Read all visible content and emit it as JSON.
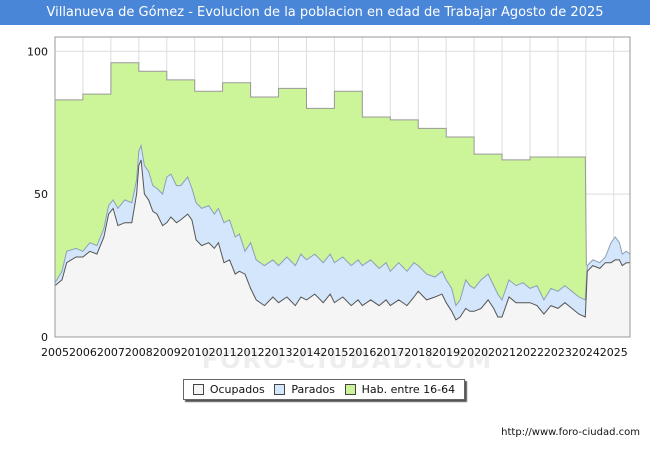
{
  "chart_data": {
    "type": "area",
    "title": "Villanueva de Gómez - Evolucion de la poblacion en edad de Trabajar Agosto de 2025",
    "xlabel": "",
    "ylabel": "",
    "x_ticks": [
      "2005",
      "2006",
      "2007",
      "2008",
      "2009",
      "2010",
      "2011",
      "2012",
      "2013",
      "2014",
      "2015",
      "2016",
      "2017",
      "2018",
      "2019",
      "2020",
      "2021",
      "2022",
      "2023",
      "2024",
      "2025"
    ],
    "y_ticks": [
      "0",
      "50",
      "100"
    ],
    "xlim": [
      2005,
      2025.58
    ],
    "ylim": [
      0,
      105
    ],
    "grid": true,
    "watermark": "FORO-CIUDAD.COM",
    "legend_position": "bottom",
    "series": [
      {
        "name": "Hab. entre 16-64",
        "color": "#ccf59a",
        "values": [
          [
            2005,
            83
          ],
          [
            2006,
            83
          ],
          [
            2006,
            85
          ],
          [
            2007,
            85
          ],
          [
            2007,
            96
          ],
          [
            2008,
            96
          ],
          [
            2008,
            93
          ],
          [
            2009,
            93
          ],
          [
            2009,
            90
          ],
          [
            2010,
            90
          ],
          [
            2010,
            86
          ],
          [
            2011,
            86
          ],
          [
            2011,
            89
          ],
          [
            2012,
            89
          ],
          [
            2012,
            84
          ],
          [
            2013,
            84
          ],
          [
            2013,
            87
          ],
          [
            2014,
            87
          ],
          [
            2014,
            80
          ],
          [
            2015,
            80
          ],
          [
            2015,
            86
          ],
          [
            2016,
            86
          ],
          [
            2016,
            77
          ],
          [
            2017,
            77
          ],
          [
            2017,
            76
          ],
          [
            2018,
            76
          ],
          [
            2018,
            73
          ],
          [
            2019,
            73
          ],
          [
            2019,
            70
          ],
          [
            2020,
            70
          ],
          [
            2020,
            64
          ],
          [
            2021,
            64
          ],
          [
            2021,
            62
          ],
          [
            2022,
            62
          ],
          [
            2022,
            63
          ],
          [
            2023.98,
            63
          ],
          [
            2024.02,
            25
          ]
        ]
      },
      {
        "name": "Parados",
        "color": "#d3e6fb",
        "values": [
          [
            2005,
            19
          ],
          [
            2005.25,
            23
          ],
          [
            2005.42,
            30
          ],
          [
            2005.75,
            31
          ],
          [
            2006,
            30
          ],
          [
            2006.25,
            33
          ],
          [
            2006.5,
            32
          ],
          [
            2006.75,
            38
          ],
          [
            2006.92,
            46
          ],
          [
            2007.08,
            48
          ],
          [
            2007.25,
            45
          ],
          [
            2007.5,
            48
          ],
          [
            2007.75,
            47
          ],
          [
            2007.92,
            55
          ],
          [
            2008,
            65
          ],
          [
            2008.08,
            67
          ],
          [
            2008.2,
            60
          ],
          [
            2008.35,
            58
          ],
          [
            2008.5,
            53
          ],
          [
            2008.65,
            52
          ],
          [
            2008.85,
            50
          ],
          [
            2009,
            56
          ],
          [
            2009.15,
            57
          ],
          [
            2009.35,
            53
          ],
          [
            2009.5,
            53
          ],
          [
            2009.75,
            56
          ],
          [
            2009.9,
            52
          ],
          [
            2010.05,
            47
          ],
          [
            2010.25,
            45
          ],
          [
            2010.5,
            46
          ],
          [
            2010.7,
            43
          ],
          [
            2010.85,
            45
          ],
          [
            2011.05,
            40
          ],
          [
            2011.25,
            41
          ],
          [
            2011.45,
            35
          ],
          [
            2011.6,
            36
          ],
          [
            2011.8,
            30
          ],
          [
            2012,
            33
          ],
          [
            2012.2,
            27
          ],
          [
            2012.5,
            25
          ],
          [
            2012.8,
            27
          ],
          [
            2013,
            25
          ],
          [
            2013.3,
            28
          ],
          [
            2013.6,
            25
          ],
          [
            2013.8,
            29
          ],
          [
            2014,
            27
          ],
          [
            2014.3,
            29
          ],
          [
            2014.6,
            26
          ],
          [
            2014.85,
            29
          ],
          [
            2015,
            26
          ],
          [
            2015.3,
            28
          ],
          [
            2015.6,
            25
          ],
          [
            2015.85,
            27
          ],
          [
            2016,
            25
          ],
          [
            2016.3,
            27
          ],
          [
            2016.6,
            24
          ],
          [
            2016.85,
            26
          ],
          [
            2017,
            23
          ],
          [
            2017.3,
            26
          ],
          [
            2017.6,
            23
          ],
          [
            2017.85,
            26
          ],
          [
            2018,
            25
          ],
          [
            2018.3,
            22
          ],
          [
            2018.6,
            21
          ],
          [
            2018.85,
            23
          ],
          [
            2019,
            20
          ],
          [
            2019.2,
            17
          ],
          [
            2019.35,
            11
          ],
          [
            2019.5,
            13
          ],
          [
            2019.7,
            20
          ],
          [
            2019.85,
            18
          ],
          [
            2020,
            17
          ],
          [
            2020.25,
            20
          ],
          [
            2020.5,
            22
          ],
          [
            2020.7,
            18
          ],
          [
            2020.85,
            15
          ],
          [
            2021,
            13
          ],
          [
            2021.25,
            20
          ],
          [
            2021.5,
            18
          ],
          [
            2021.75,
            19
          ],
          [
            2022,
            17
          ],
          [
            2022.25,
            18
          ],
          [
            2022.5,
            13
          ],
          [
            2022.75,
            17
          ],
          [
            2023,
            16
          ],
          [
            2023.25,
            18
          ],
          [
            2023.5,
            16
          ],
          [
            2023.75,
            14
          ],
          [
            2023.98,
            13
          ],
          [
            2024.05,
            25
          ],
          [
            2024.25,
            27
          ],
          [
            2024.5,
            26
          ],
          [
            2024.7,
            28
          ],
          [
            2024.9,
            33
          ],
          [
            2025.05,
            35
          ],
          [
            2025.2,
            33
          ],
          [
            2025.3,
            29
          ],
          [
            2025.45,
            30
          ],
          [
            2025.58,
            29
          ]
        ]
      },
      {
        "name": "Ocupados",
        "color": "#f5f5f5",
        "values": [
          [
            2005,
            18
          ],
          [
            2005.25,
            20
          ],
          [
            2005.42,
            26
          ],
          [
            2005.75,
            28
          ],
          [
            2006,
            28
          ],
          [
            2006.25,
            30
          ],
          [
            2006.5,
            29
          ],
          [
            2006.75,
            35
          ],
          [
            2006.92,
            43
          ],
          [
            2007.08,
            45
          ],
          [
            2007.25,
            39
          ],
          [
            2007.5,
            40
          ],
          [
            2007.75,
            40
          ],
          [
            2007.92,
            50
          ],
          [
            2008,
            60
          ],
          [
            2008.08,
            62
          ],
          [
            2008.2,
            50
          ],
          [
            2008.35,
            48
          ],
          [
            2008.5,
            44
          ],
          [
            2008.65,
            43
          ],
          [
            2008.85,
            39
          ],
          [
            2009,
            40
          ],
          [
            2009.15,
            42
          ],
          [
            2009.35,
            40
          ],
          [
            2009.5,
            41
          ],
          [
            2009.75,
            43
          ],
          [
            2009.9,
            41
          ],
          [
            2010.05,
            34
          ],
          [
            2010.25,
            32
          ],
          [
            2010.5,
            33
          ],
          [
            2010.7,
            31
          ],
          [
            2010.85,
            33
          ],
          [
            2011.05,
            26
          ],
          [
            2011.25,
            27
          ],
          [
            2011.45,
            22
          ],
          [
            2011.6,
            23
          ],
          [
            2011.8,
            22
          ],
          [
            2012,
            17
          ],
          [
            2012.2,
            13
          ],
          [
            2012.5,
            11
          ],
          [
            2012.8,
            14
          ],
          [
            2013,
            12
          ],
          [
            2013.3,
            14
          ],
          [
            2013.6,
            11
          ],
          [
            2013.8,
            14
          ],
          [
            2014,
            13
          ],
          [
            2014.3,
            15
          ],
          [
            2014.6,
            12
          ],
          [
            2014.85,
            15
          ],
          [
            2015,
            12
          ],
          [
            2015.3,
            14
          ],
          [
            2015.6,
            11
          ],
          [
            2015.85,
            13
          ],
          [
            2016,
            11
          ],
          [
            2016.3,
            13
          ],
          [
            2016.6,
            11
          ],
          [
            2016.85,
            13
          ],
          [
            2017,
            11
          ],
          [
            2017.3,
            13
          ],
          [
            2017.6,
            11
          ],
          [
            2017.85,
            14
          ],
          [
            2018,
            16
          ],
          [
            2018.3,
            13
          ],
          [
            2018.6,
            14
          ],
          [
            2018.85,
            15
          ],
          [
            2019,
            12
          ],
          [
            2019.2,
            9
          ],
          [
            2019.35,
            6
          ],
          [
            2019.5,
            7
          ],
          [
            2019.7,
            10
          ],
          [
            2019.85,
            9
          ],
          [
            2020,
            9
          ],
          [
            2020.25,
            10
          ],
          [
            2020.5,
            13
          ],
          [
            2020.7,
            10
          ],
          [
            2020.85,
            7
          ],
          [
            2021,
            7
          ],
          [
            2021.25,
            14
          ],
          [
            2021.5,
            12
          ],
          [
            2021.75,
            12
          ],
          [
            2022,
            12
          ],
          [
            2022.25,
            11
          ],
          [
            2022.5,
            8
          ],
          [
            2022.75,
            11
          ],
          [
            2023,
            10
          ],
          [
            2023.25,
            12
          ],
          [
            2023.5,
            10
          ],
          [
            2023.75,
            8
          ],
          [
            2023.98,
            7
          ],
          [
            2024.05,
            23
          ],
          [
            2024.25,
            25
          ],
          [
            2024.5,
            24
          ],
          [
            2024.7,
            26
          ],
          [
            2024.9,
            26
          ],
          [
            2025.05,
            27
          ],
          [
            2025.2,
            27
          ],
          [
            2025.3,
            25
          ],
          [
            2025.45,
            26
          ],
          [
            2025.58,
            26
          ]
        ]
      }
    ]
  },
  "legend": {
    "items": [
      {
        "label": "Ocupados",
        "color": "#f5f5f5"
      },
      {
        "label": "Parados",
        "color": "#d3e6fb"
      },
      {
        "label": "Hab. entre 16-64",
        "color": "#ccf59a"
      }
    ]
  },
  "footer": {
    "url": "http://www.foro-ciudad.com"
  }
}
